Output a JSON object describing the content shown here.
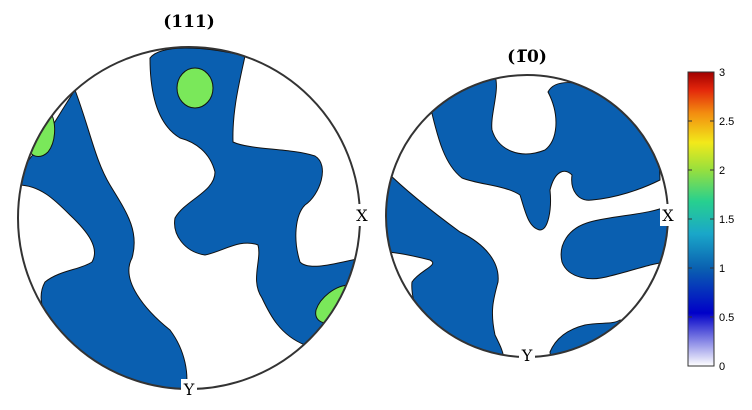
{
  "chart_data": [
    {
      "type": "heatmap",
      "title": "(111)",
      "x_direction_label": "X",
      "y_direction_label": "Y",
      "levels_shown": [
        "1",
        "2"
      ],
      "fill_colors": {
        "above_1": "#0a5fb0",
        "above_2": "#7ae85a"
      }
    },
    {
      "type": "heatmap",
      "title": "(1̅0)",
      "x_direction_label": "X",
      "y_direction_label": "Y",
      "levels_shown": [
        "1"
      ],
      "fill_colors": {
        "above_1": "#0a5fb0"
      }
    }
  ],
  "colorbar": {
    "range": [
      0,
      3
    ],
    "ticks": [
      "0",
      "0.5",
      "1",
      "1.5",
      "2",
      "2.5",
      "3"
    ],
    "colormap": [
      "#ffffff",
      "#0000c8",
      "#0a5fb0",
      "#1aa7c9",
      "#27d08f",
      "#9ae03c",
      "#f2e91a",
      "#f38d10",
      "#e3260b",
      "#a10000"
    ]
  }
}
